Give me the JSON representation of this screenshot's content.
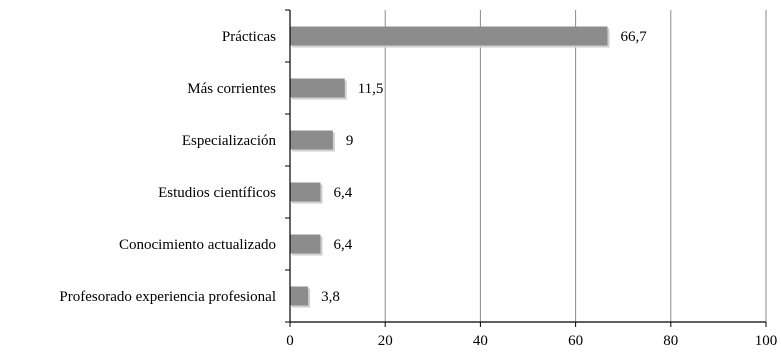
{
  "chart_data": {
    "type": "bar",
    "orientation": "horizontal",
    "categories": [
      "Prácticas",
      "Más corrientes",
      "Especialización",
      "Estudios científicos",
      "Conocimiento actualizado",
      "Profesorado experiencia profesional"
    ],
    "values": [
      66.7,
      11.5,
      9,
      6.4,
      6.4,
      3.8
    ],
    "value_labels": [
      "66,7",
      "11,5",
      "9",
      "6,4",
      "6,4",
      "3,8"
    ],
    "xlim": [
      0,
      100
    ],
    "xticks": [
      0,
      20,
      40,
      60,
      80,
      100
    ],
    "xtick_labels": [
      "0",
      "20",
      "40",
      "60",
      "80",
      "100"
    ],
    "grid": "vertical",
    "legend": "none",
    "title": "",
    "xlabel": "",
    "ylabel": "",
    "bar_color": "#8c8c8c"
  }
}
